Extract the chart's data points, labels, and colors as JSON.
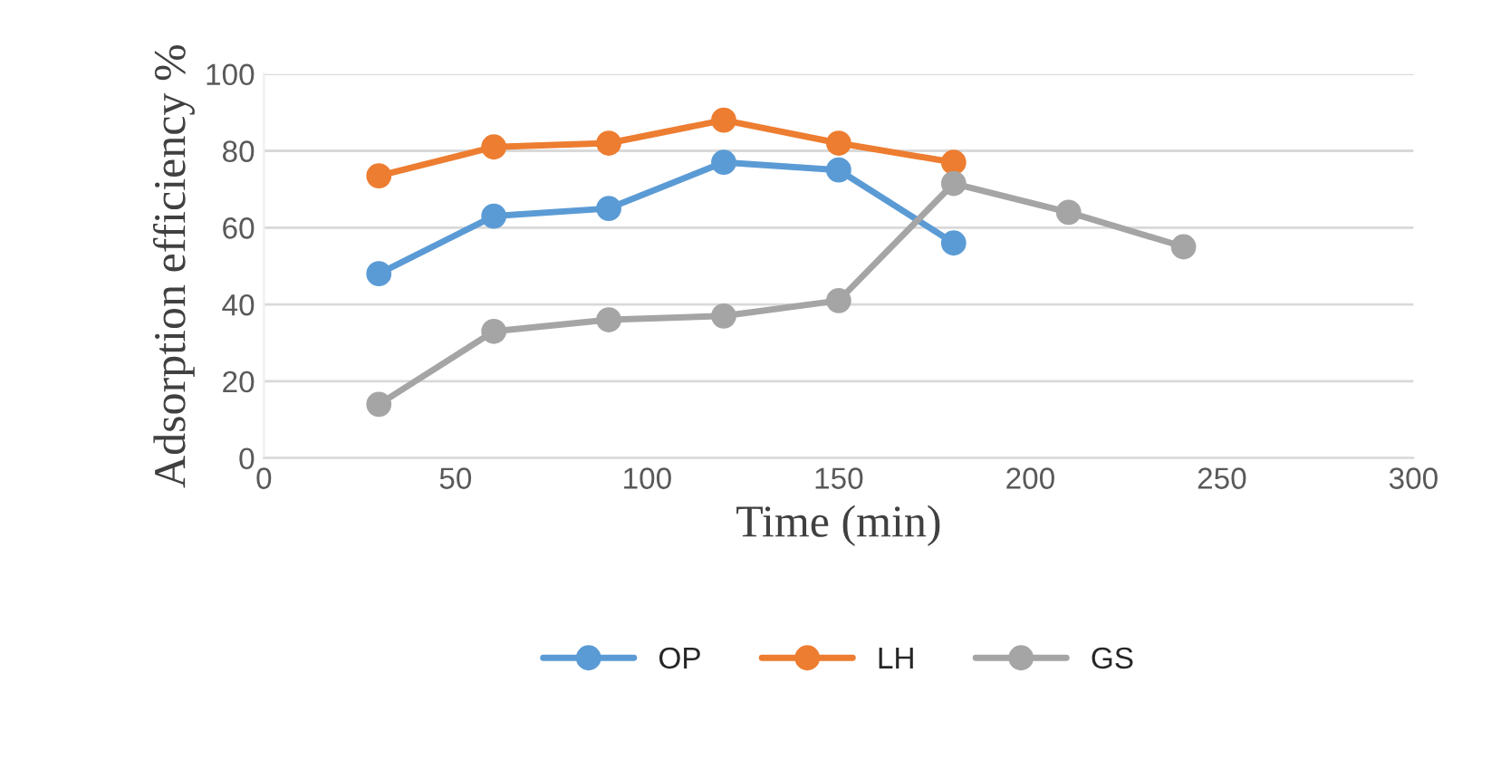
{
  "chart_data": {
    "type": "line",
    "xlabel": "Time (min)",
    "ylabel": "Adsorption efficiency %",
    "xlim": [
      0,
      300
    ],
    "xticks": [
      0,
      50,
      100,
      150,
      200,
      250,
      300
    ],
    "ylim": [
      0,
      100
    ],
    "yticks": [
      0,
      20,
      40,
      60,
      80,
      100
    ],
    "grid": "y",
    "legend": "bottom",
    "marker": "circle",
    "line_style": "solid",
    "series": [
      {
        "name": "OP",
        "color": "#5b9bd5",
        "x": [
          30,
          60,
          90,
          120,
          150,
          180
        ],
        "values": [
          48,
          63,
          65,
          77,
          75,
          56
        ]
      },
      {
        "name": "LH",
        "color": "#ed7d31",
        "x": [
          30,
          60,
          90,
          120,
          150,
          180
        ],
        "values": [
          73.5,
          81,
          82,
          88,
          82,
          77
        ]
      },
      {
        "name": "GS",
        "color": "#a5a5a5",
        "x": [
          30,
          60,
          90,
          120,
          150,
          180,
          210,
          240
        ],
        "values": [
          14,
          33,
          36,
          37,
          41,
          71.5,
          64,
          55
        ]
      }
    ]
  }
}
